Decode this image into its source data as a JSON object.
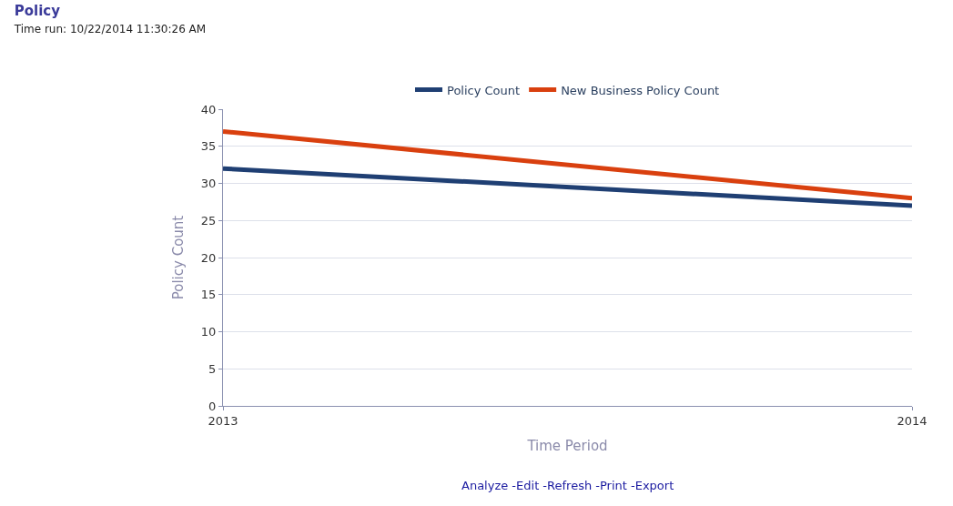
{
  "chart_data": {
    "type": "line",
    "title": "Policy",
    "subtitle": "Time run: 10/22/2014 11:30:26 AM",
    "xlabel": "Time Period",
    "ylabel": "Policy Count",
    "x": [
      2013,
      2014
    ],
    "xlim": [
      2013,
      2014
    ],
    "xticks": [
      2013,
      2014
    ],
    "ylim": [
      0,
      40
    ],
    "yticks": [
      0,
      5,
      10,
      15,
      20,
      25,
      30,
      35,
      40
    ],
    "series": [
      {
        "name": "Policy Count",
        "color": "#1f3f73",
        "values": [
          32,
          27
        ]
      },
      {
        "name": "New Business Policy Count",
        "color": "#d9400f",
        "values": [
          37,
          28
        ]
      }
    ],
    "grid": "y",
    "legend": "top",
    "marker": "none",
    "line_style": "solid",
    "annotations": [
      "Analyze -Edit -Refresh -Print -Export"
    ]
  }
}
